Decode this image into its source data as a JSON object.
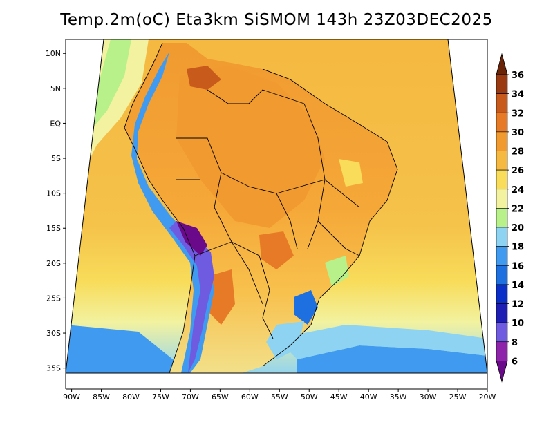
{
  "title": "Temp.2m(oC) Eta3km SiSMOM 143h 23Z03DEC2025",
  "map": {
    "lon_range": [
      -91,
      -20
    ],
    "lat_range": [
      -38,
      12
    ],
    "lon_ticks": [
      {
        "value": -90,
        "label": "90W"
      },
      {
        "value": -85,
        "label": "85W"
      },
      {
        "value": -80,
        "label": "80W"
      },
      {
        "value": -75,
        "label": "75W"
      },
      {
        "value": -70,
        "label": "70W"
      },
      {
        "value": -65,
        "label": "65W"
      },
      {
        "value": -60,
        "label": "60W"
      },
      {
        "value": -55,
        "label": "55W"
      },
      {
        "value": -50,
        "label": "50W"
      },
      {
        "value": -45,
        "label": "45W"
      },
      {
        "value": -40,
        "label": "40W"
      },
      {
        "value": -35,
        "label": "35W"
      },
      {
        "value": -30,
        "label": "30W"
      },
      {
        "value": -25,
        "label": "25W"
      },
      {
        "value": -20,
        "label": "20W"
      }
    ],
    "lat_ticks": [
      {
        "value": 10,
        "label": "10N"
      },
      {
        "value": 5,
        "label": "5N"
      },
      {
        "value": 0,
        "label": "EQ"
      },
      {
        "value": -5,
        "label": "5S"
      },
      {
        "value": -10,
        "label": "10S"
      },
      {
        "value": -15,
        "label": "15S"
      },
      {
        "value": -20,
        "label": "20S"
      },
      {
        "value": -25,
        "label": "25S"
      },
      {
        "value": -30,
        "label": "30S"
      },
      {
        "value": -35,
        "label": "35S"
      }
    ]
  },
  "colorbar": {
    "unit": "oC",
    "labels": [
      "6",
      "8",
      "10",
      "12",
      "14",
      "16",
      "18",
      "20",
      "22",
      "24",
      "26",
      "28",
      "30",
      "32",
      "34",
      "36"
    ],
    "colors": [
      "#6a0a8a",
      "#8e24aa",
      "#6f5be0",
      "#1e1eb4",
      "#0a2ec8",
      "#1e6fe0",
      "#3f9af0",
      "#8ed3f2",
      "#b8f08a",
      "#f2f2a0",
      "#f8dc5a",
      "#f5b840",
      "#f09a30",
      "#e67a26",
      "#c85a1c",
      "#9a3a12",
      "#6a2408"
    ]
  }
}
